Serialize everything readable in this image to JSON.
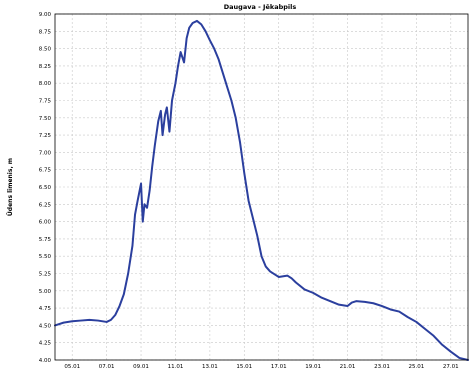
{
  "chart_data": {
    "type": "line",
    "title": "Daugava - Jēkabpils",
    "ylabel": "Ūdens līmenis, m",
    "xlabel": "",
    "ylim": [
      4.0,
      9.0
    ],
    "yticks": [
      "9.00",
      "8.75",
      "8.50",
      "8.25",
      "8.00",
      "7.75",
      "7.50",
      "7.25",
      "7.00",
      "6.75",
      "6.50",
      "6.25",
      "6.00",
      "5.75",
      "5.50",
      "5.25",
      "5.00",
      "4.75",
      "4.50",
      "4.25",
      "4.00"
    ],
    "xlim": [
      0,
      48
    ],
    "xticks": [
      {
        "x": 2,
        "label": "05.01"
      },
      {
        "x": 6,
        "label": "07.01"
      },
      {
        "x": 10,
        "label": "09.01"
      },
      {
        "x": 14,
        "label": "11.01"
      },
      {
        "x": 18,
        "label": "13.01"
      },
      {
        "x": 22,
        "label": "15.01"
      },
      {
        "x": 26,
        "label": "17.01"
      },
      {
        "x": 30,
        "label": "19.01"
      },
      {
        "x": 34,
        "label": "21.01"
      },
      {
        "x": 38,
        "label": "23.01"
      },
      {
        "x": 42,
        "label": "25.01"
      },
      {
        "x": 46,
        "label": "27.01"
      }
    ],
    "grid": true,
    "series": [
      {
        "color": "#2b3f9e",
        "points": [
          [
            0,
            4.5
          ],
          [
            1,
            4.54
          ],
          [
            2,
            4.56
          ],
          [
            3,
            4.57
          ],
          [
            4,
            4.58
          ],
          [
            5,
            4.57
          ],
          [
            6,
            4.55
          ],
          [
            6.5,
            4.58
          ],
          [
            7,
            4.65
          ],
          [
            7.5,
            4.78
          ],
          [
            8,
            4.95
          ],
          [
            8.5,
            5.25
          ],
          [
            9,
            5.65
          ],
          [
            9.3,
            6.1
          ],
          [
            9.6,
            6.3
          ],
          [
            10,
            6.55
          ],
          [
            10.2,
            6.0
          ],
          [
            10.4,
            6.25
          ],
          [
            10.7,
            6.2
          ],
          [
            11,
            6.45
          ],
          [
            11.3,
            6.8
          ],
          [
            11.6,
            7.1
          ],
          [
            12,
            7.45
          ],
          [
            12.3,
            7.6
          ],
          [
            12.5,
            7.25
          ],
          [
            12.8,
            7.55
          ],
          [
            13,
            7.65
          ],
          [
            13.3,
            7.3
          ],
          [
            13.6,
            7.75
          ],
          [
            14,
            8.0
          ],
          [
            14.3,
            8.25
          ],
          [
            14.6,
            8.45
          ],
          [
            15,
            8.3
          ],
          [
            15.3,
            8.65
          ],
          [
            15.6,
            8.8
          ],
          [
            16,
            8.87
          ],
          [
            16.5,
            8.9
          ],
          [
            17,
            8.85
          ],
          [
            17.5,
            8.75
          ],
          [
            18,
            8.62
          ],
          [
            18.5,
            8.5
          ],
          [
            19,
            8.35
          ],
          [
            19.5,
            8.15
          ],
          [
            20,
            7.95
          ],
          [
            20.5,
            7.75
          ],
          [
            21,
            7.5
          ],
          [
            21.5,
            7.15
          ],
          [
            22,
            6.7
          ],
          [
            22.5,
            6.3
          ],
          [
            23,
            6.05
          ],
          [
            23.5,
            5.8
          ],
          [
            24,
            5.5
          ],
          [
            24.5,
            5.35
          ],
          [
            25,
            5.28
          ],
          [
            26,
            5.2
          ],
          [
            27,
            5.22
          ],
          [
            27.5,
            5.18
          ],
          [
            28,
            5.12
          ],
          [
            29,
            5.02
          ],
          [
            30,
            4.97
          ],
          [
            31,
            4.9
          ],
          [
            32,
            4.85
          ],
          [
            33,
            4.8
          ],
          [
            34,
            4.78
          ],
          [
            34.5,
            4.83
          ],
          [
            35,
            4.85
          ],
          [
            36,
            4.84
          ],
          [
            37,
            4.82
          ],
          [
            38,
            4.78
          ],
          [
            39,
            4.73
          ],
          [
            40,
            4.7
          ],
          [
            41,
            4.62
          ],
          [
            42,
            4.55
          ],
          [
            43,
            4.45
          ],
          [
            44,
            4.35
          ],
          [
            45,
            4.22
          ],
          [
            46,
            4.12
          ],
          [
            47,
            4.03
          ],
          [
            48,
            4.0
          ]
        ]
      }
    ]
  },
  "colors": {
    "line": "#2b3f9e",
    "grid": "#c8c8c8",
    "axis": "#000000",
    "background": "#ffffff"
  }
}
